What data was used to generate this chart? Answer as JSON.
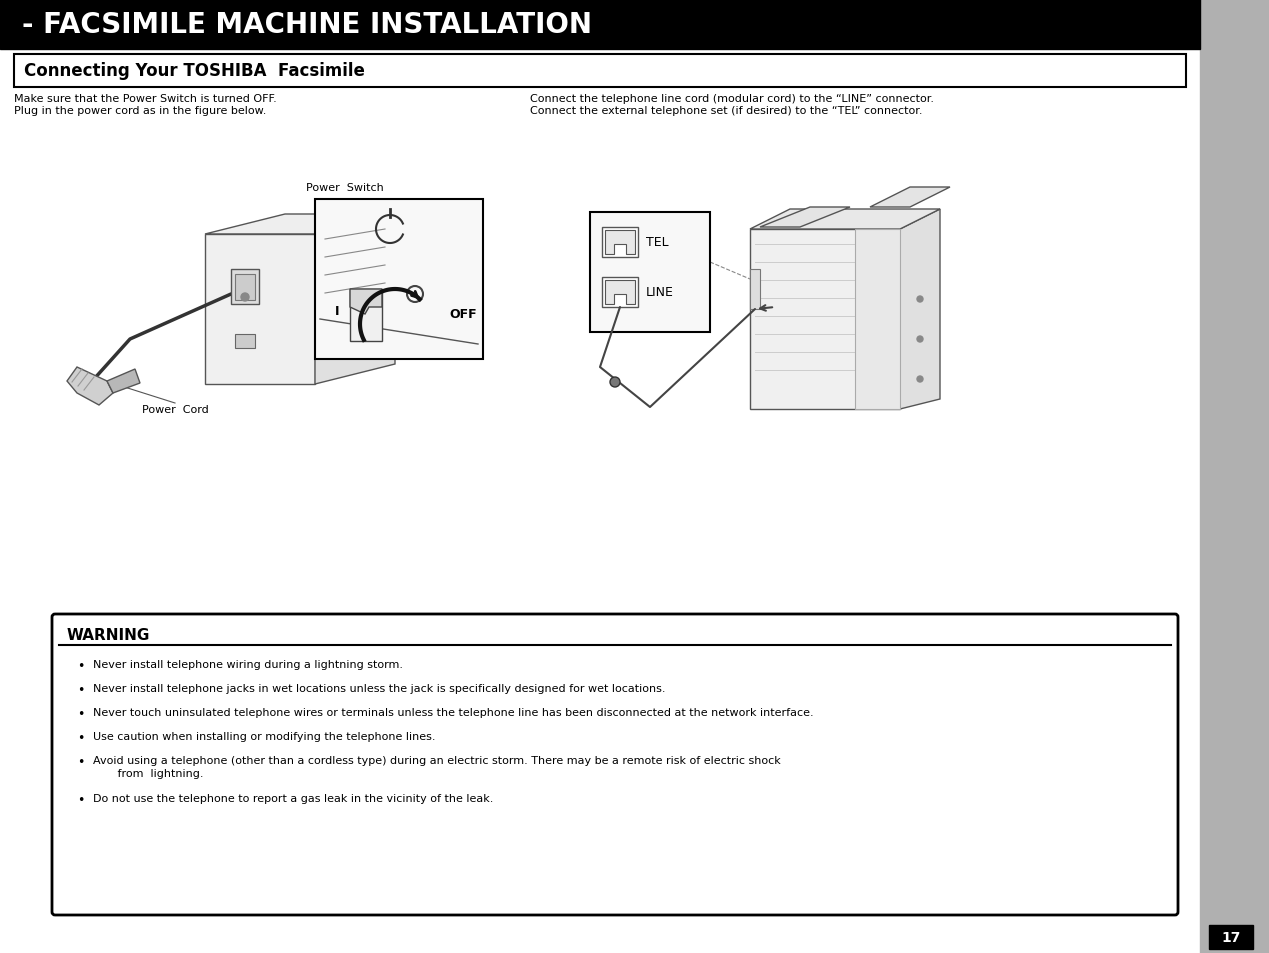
{
  "title": "- FACSIMILE MACHINE INSTALLATION",
  "subtitle": "Connecting Your TOSHIBA  Facsimile",
  "bg_color": "#ffffff",
  "title_bg": "#000000",
  "title_fg": "#ffffff",
  "subtitle_bg": "#ffffff",
  "subtitle_border": "#000000",
  "body_text_left_1": "Make sure that the Power Switch is turned OFF.",
  "body_text_left_2": "Plug in the power cord as in the figure below.",
  "body_text_right_1": "Connect the telephone line cord (modular cord) to the “LINE” connector.",
  "body_text_right_2": "Connect the external telephone set (if desired) to the “TEL” connector.",
  "power_switch_label": "Power  Switch",
  "power_cord_label": "Power  Cord",
  "off_label": "OFF",
  "tel_label": "TEL",
  "line_label": "LINE",
  "warning_title": "WARNING",
  "warning_bullets": [
    "Never install telephone wiring during a lightning storm.",
    "Never install telephone jacks in wet locations unless the jack is specifically designed for wet locations.",
    "Never touch uninsulated telephone wires or terminals unless the telephone line has been disconnected at the network interface.",
    "Use caution when installing or modifying the telephone lines.",
    "Avoid using a telephone (other than a cordless type) during an electric storm. There may be a remote risk of electric shock\n       from  lightning.",
    "Do not use the telephone to report a gas leak in the vicinity of the leak."
  ],
  "page_number": "17",
  "sidebar_color": "#b0b0b0",
  "lw": 1.0
}
